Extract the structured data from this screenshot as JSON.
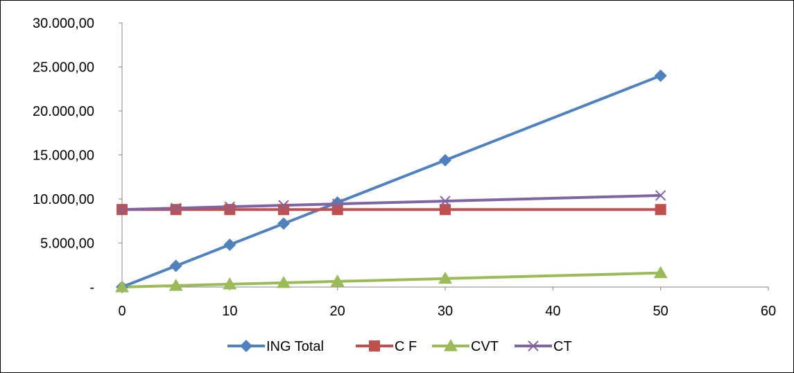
{
  "chart_data": {
    "type": "line",
    "x": [
      0,
      5,
      10,
      15,
      20,
      30,
      50
    ],
    "series": [
      {
        "name": "ING Total",
        "color": "#4F81BD",
        "marker": "diamond",
        "values": [
          0,
          2400,
          4800,
          7200,
          9600,
          14400,
          24000
        ]
      },
      {
        "name": "C F",
        "color": "#C0504D",
        "marker": "square",
        "values": [
          8800,
          8800,
          8800,
          8800,
          8800,
          8800,
          8800
        ]
      },
      {
        "name": "CVT",
        "color": "#9BBB59",
        "marker": "triangle",
        "values": [
          0,
          160,
          320,
          480,
          640,
          960,
          1600
        ]
      },
      {
        "name": "CT",
        "color": "#8064A2",
        "marker": "x",
        "values": [
          8800,
          8960,
          9120,
          9280,
          9440,
          9760,
          10400
        ]
      }
    ],
    "xlim": [
      0,
      60
    ],
    "ylim": [
      0,
      30000
    ],
    "x_ticks": [
      "0",
      "10",
      "20",
      "30",
      "40",
      "50",
      "60"
    ],
    "y_ticks": [
      "-",
      "5.000,00",
      "10.000,00",
      "15.000,00",
      "20.000,00",
      "25.000,00",
      "30.000,00"
    ],
    "grid": false,
    "legend_position": "bottom"
  }
}
